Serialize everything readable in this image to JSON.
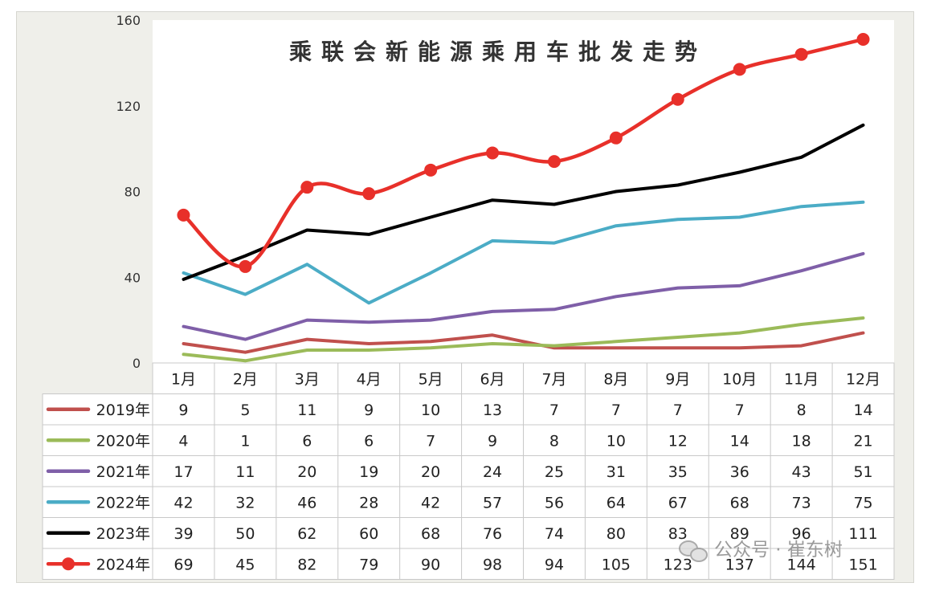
{
  "chart_data": {
    "type": "line",
    "title": "乘联会新能源乘用车批发走势",
    "categories": [
      "1月",
      "2月",
      "3月",
      "4月",
      "5月",
      "6月",
      "7月",
      "8月",
      "9月",
      "10月",
      "11月",
      "12月"
    ],
    "ylim": [
      0,
      160
    ],
    "yticks": [
      "0",
      "40",
      "80",
      "120",
      "160"
    ],
    "grid": false,
    "legend": "data-table",
    "series": [
      {
        "name": "2019年",
        "color": "#c0504d",
        "values": [
          9,
          5,
          11,
          9,
          10,
          13,
          7,
          7,
          7,
          7,
          8,
          14
        ]
      },
      {
        "name": "2020年",
        "color": "#9bbb59",
        "values": [
          4,
          1,
          6,
          6,
          7,
          9,
          8,
          10,
          12,
          14,
          18,
          21
        ]
      },
      {
        "name": "2021年",
        "color": "#7f5fa8",
        "values": [
          17,
          11,
          20,
          19,
          20,
          24,
          25,
          31,
          35,
          36,
          43,
          51
        ]
      },
      {
        "name": "2022年",
        "color": "#4bacc6",
        "values": [
          42,
          32,
          46,
          28,
          42,
          57,
          56,
          64,
          67,
          68,
          73,
          75
        ]
      },
      {
        "name": "2023年",
        "color": "#000000",
        "values": [
          39,
          50,
          62,
          60,
          68,
          76,
          74,
          80,
          83,
          89,
          96,
          111
        ]
      },
      {
        "name": "2024年",
        "color": "#e8302a",
        "markers": true,
        "values": [
          69,
          45,
          82,
          79,
          90,
          98,
          94,
          105,
          123,
          137,
          144,
          151
        ]
      }
    ]
  },
  "watermark": "公众号 · 崔东树"
}
